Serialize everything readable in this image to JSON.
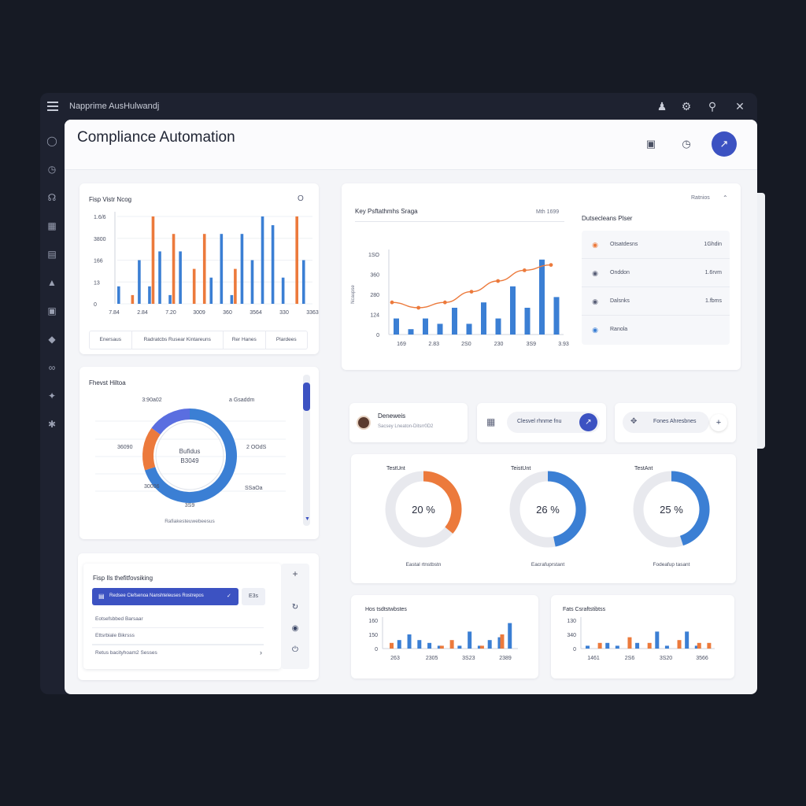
{
  "window": {
    "app_name": "Napprime AusHulwandj",
    "icons": [
      "user-icon",
      "settings-icon",
      "search-icon",
      "close-icon"
    ]
  },
  "rail": [
    "globe-icon",
    "clock-icon",
    "headset-icon",
    "calendar-icon",
    "document-icon",
    "car-icon",
    "bag-icon",
    "tag-icon",
    "link-icon",
    "pin-icon",
    "puzzle-icon"
  ],
  "header": {
    "title": "Compliance Automation",
    "buttons": [
      "layout-icon",
      "timer-icon"
    ],
    "avatar_glyph": "↗"
  },
  "colors": {
    "blue": "#3b7fd4",
    "orange": "#ec7a3c",
    "accent": "#3c52c2"
  },
  "panel_a": {
    "title": "Fisp Vistr Ncog",
    "menu_glyph": "O",
    "filters": [
      "Enersaus",
      "Radratcbs Rusear Kintareuns",
      "Rer Hanes",
      "Plardees"
    ],
    "chart_data": {
      "type": "bar",
      "y_ticks": [
        "1.6/6",
        "3800",
        "166",
        "13",
        "0"
      ],
      "x_ticks": [
        "7.84",
        "2.84",
        "7.20",
        "3009",
        "360",
        "3564",
        "330",
        "3363"
      ],
      "series": [
        {
          "color": "#3b7fd4",
          "values": [
            2,
            0,
            5,
            2,
            6,
            1,
            6,
            0,
            0,
            3,
            8,
            1,
            8,
            5,
            10,
            9,
            3,
            0,
            5
          ]
        },
        {
          "color": "#ec7a3c",
          "values": [
            0,
            1,
            0,
            10,
            0,
            8,
            0,
            4,
            8,
            0,
            0,
            4,
            0,
            0,
            0,
            0,
            0,
            10,
            0
          ]
        }
      ],
      "ylim": [
        0,
        10
      ]
    }
  },
  "panel_b": {
    "title": "Key Psftathmhs Sraga",
    "right_label": "Mth 1699",
    "chart_data": {
      "type": "bar+line",
      "y_ticks": [
        "1SO",
        "360",
        "280",
        "124",
        "0"
      ],
      "y_axis_label": "Ncaupse",
      "x_ticks": [
        "169",
        "2.83",
        "2S0",
        "230",
        "3S9",
        "3.93"
      ],
      "bars": [
        3,
        1,
        3,
        2,
        5,
        2,
        6,
        3,
        9,
        5,
        14,
        7
      ],
      "line": [
        6,
        5,
        6,
        8,
        10,
        12,
        13
      ],
      "ylim": [
        0,
        15
      ]
    }
  },
  "panel_b_side": {
    "top_label": "Ratnios",
    "title": "Dutsecleans Plser",
    "rows": [
      {
        "icon": "alert-icon",
        "label": "Otsatdesns",
        "value": "1Ghdin",
        "color": "#ec7a3c"
      },
      {
        "icon": "card-icon",
        "label": "Onddon",
        "value": "1.6rvm",
        "color": "#5a6078"
      },
      {
        "icon": "shield-icon",
        "label": "Dalsnks",
        "value": "1.fbms",
        "color": "#5a6078"
      },
      {
        "icon": "people-icon",
        "label": "Ranola",
        "value": "",
        "color": "#3b7fd4"
      }
    ]
  },
  "panel_c": {
    "title": "Fhevst Hiltoa",
    "chart_data": {
      "type": "donut",
      "center_label": "Bufidus",
      "center_value": "B3049",
      "labels": [
        "3:90a02",
        "a Gsaddm",
        "36090",
        "2 OOdS",
        "30006",
        "SSaOa",
        "3S9"
      ],
      "bottom_label": "Rafiakesteuwebeesus",
      "slices": [
        {
          "value": 70,
          "color": "#3b7fd4"
        },
        {
          "value": 15,
          "color": "#ec7a3c"
        },
        {
          "value": 15,
          "color": "#5a6ee0"
        }
      ]
    }
  },
  "panel_d": {
    "title": "Fisp Ils thefitfovsiking",
    "selected_item": "Redsee Clefsenoa Nanshteleuses  Rostrepos",
    "chip": "E3s",
    "items": [
      "Eotsefsbbed Barsaar",
      "Ettsrbiale Bikrsss",
      "Retus bacityhoam2 Sesses"
    ],
    "side_icons": [
      "plus-icon",
      "refresh-icon",
      "record-icon",
      "power-icon"
    ]
  },
  "profile": {
    "name": "Deneweis",
    "subtitle": "Sacsey Lneaton-Ditsrr0D2"
  },
  "action_card": {
    "icon": "grid-icon",
    "label": "Clesvel rhnme fnu",
    "button": "↗"
  },
  "action_card_2": {
    "label": "Fones Ahresbnes",
    "plus": "+"
  },
  "gauges": [
    {
      "title": "TestUnt",
      "percent": 20,
      "display": "20 %",
      "caption": "Eastal rtnstbstn",
      "color": "#ec7a3c"
    },
    {
      "title": "TeistUnt",
      "percent": 26,
      "display": "26 %",
      "caption": "Eacrafuprstant",
      "color": "#3b7fd4"
    },
    {
      "title": "TestAnt",
      "percent": 25,
      "display": "25 %",
      "caption": "Fodeafup tasant",
      "color": "#3b7fd4"
    }
  ],
  "mini_chart_1": {
    "title": "Hos tsdtstwbstes",
    "chart_data": {
      "type": "bar",
      "y_ticks": [
        "160",
        "150",
        "0"
      ],
      "x_ticks": [
        "263",
        "2305",
        "3S23",
        "2389"
      ],
      "series": [
        {
          "color": "#3b7fd4",
          "values": [
            0,
            3,
            5,
            3,
            2,
            1,
            0,
            1,
            6,
            1,
            3,
            4,
            9
          ]
        },
        {
          "color": "#ec7a3c",
          "values": [
            2,
            0,
            0,
            0,
            0,
            1,
            3,
            0,
            0,
            1,
            0,
            5,
            0
          ]
        }
      ]
    }
  },
  "mini_chart_2": {
    "title": "Fats Csraftstibtss",
    "chart_data": {
      "type": "bar",
      "y_ticks": [
        "130",
        "340",
        "0"
      ],
      "x_ticks": [
        "1461",
        "2S6",
        "3S20",
        "3566"
      ],
      "series": [
        {
          "color": "#3b7fd4",
          "values": [
            1,
            0,
            2,
            1,
            0,
            2,
            0,
            6,
            1,
            0,
            6,
            1,
            0
          ]
        },
        {
          "color": "#ec7a3c",
          "values": [
            0,
            2,
            0,
            0,
            4,
            0,
            2,
            0,
            0,
            3,
            0,
            2,
            2
          ]
        }
      ]
    }
  }
}
